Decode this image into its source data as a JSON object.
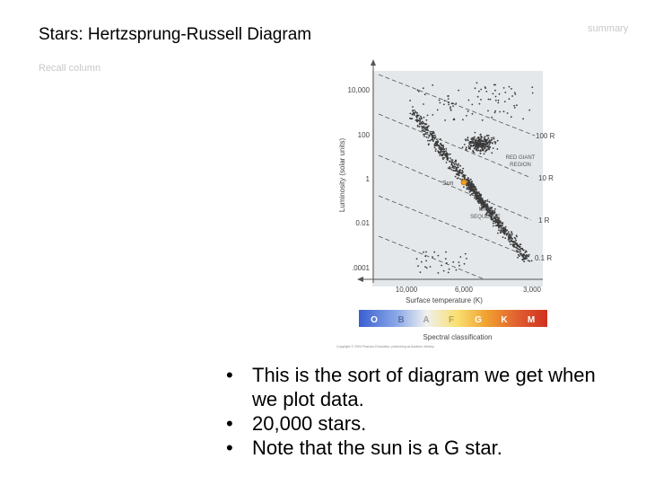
{
  "slide": {
    "title": "Stars: Hertzsprung-Russell Diagram",
    "recall_label": "Recall column",
    "summary_label": "summary"
  },
  "figure": {
    "y_axis_label": "Luminosity (solar units)",
    "y_ticks": [
      "10,000",
      "100",
      "1",
      "0.01",
      ".0001"
    ],
    "x_axis_label": "Surface temperature (K)",
    "x_ticks": [
      "10,000",
      "6,000",
      "3,000"
    ],
    "radius_lines": [
      "100 R",
      "10 R",
      "1 R",
      "0.1 R"
    ],
    "regions": {
      "red_giant_1": "RED GIANT",
      "red_giant_2": "REGION",
      "main_seq_1": "MAIN",
      "main_seq_2": "SEQUENCE",
      "sun": "Sun"
    },
    "spectral_classes": [
      "O",
      "B",
      "A",
      "F",
      "G",
      "K",
      "M"
    ],
    "spectral_label": "Spectral classification",
    "copyright": "Copyright © 2004 Pearson Education, publishing as Addison Wesley"
  },
  "bullets": [
    {
      "marker": "•",
      "text": "This is the sort of diagram we get when we plot data."
    },
    {
      "marker": "•",
      "text": "20,000 stars."
    },
    {
      "marker": "•",
      "text": "Note that the sun is a G star."
    }
  ],
  "colors": {
    "plot_bg": "#e4e8ea",
    "star": "#3a3a3a",
    "sun": "#f0a020",
    "spectral_gradient": [
      "#3a5fd0",
      "#8aa8e8",
      "#f0f0f0",
      "#f8e070",
      "#f0a030",
      "#e06030",
      "#d03020"
    ]
  }
}
